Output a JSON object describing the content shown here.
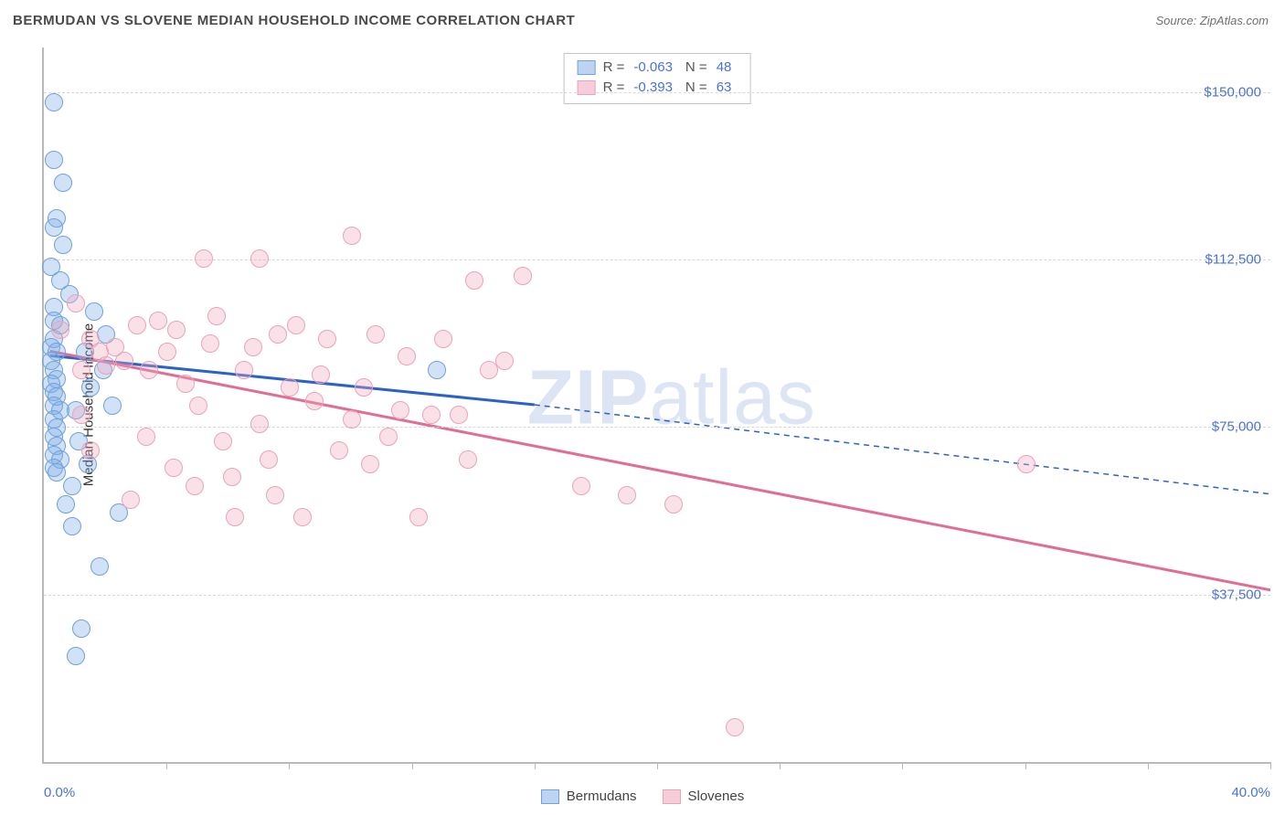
{
  "title": "BERMUDAN VS SLOVENE MEDIAN HOUSEHOLD INCOME CORRELATION CHART",
  "source": "Source: ZipAtlas.com",
  "watermark_part1": "ZIP",
  "watermark_part2": "atlas",
  "y_axis_title": "Median Household Income",
  "x_axis": {
    "min": 0.0,
    "max": 40.0,
    "left_label": "0.0%",
    "right_label": "40.0%",
    "tick_positions_pct": [
      10,
      20,
      30,
      40,
      50,
      60,
      70,
      80,
      90,
      100
    ]
  },
  "y_axis": {
    "min": 0,
    "max": 160000,
    "gridlines": [
      {
        "value": 37500,
        "label": "$37,500"
      },
      {
        "value": 75000,
        "label": "$75,000"
      },
      {
        "value": 112500,
        "label": "$112,500"
      },
      {
        "value": 150000,
        "label": "$150,000"
      }
    ]
  },
  "series": [
    {
      "name": "Bermudans",
      "marker_fill": "rgba(127,173,229,0.35)",
      "marker_stroke": "#6fa2db",
      "line_color": "#2a62c8",
      "swatch_fill": "#bcd4f0",
      "swatch_border": "#6fa2db",
      "marker_radius": 9,
      "trend": {
        "x1_pct": 0.2,
        "y1": 91000,
        "x2_pct": 16.0,
        "y2": 80000,
        "dash_x2_pct": 40.0,
        "dash_y2": 60000
      },
      "stats": {
        "R": "-0.063",
        "N": "48"
      },
      "data": [
        {
          "x": 0.3,
          "y": 148000
        },
        {
          "x": 0.3,
          "y": 135000
        },
        {
          "x": 0.4,
          "y": 122000
        },
        {
          "x": 0.3,
          "y": 120000
        },
        {
          "x": 0.6,
          "y": 116000
        },
        {
          "x": 0.2,
          "y": 111000
        },
        {
          "x": 0.5,
          "y": 108000
        },
        {
          "x": 0.3,
          "y": 102000
        },
        {
          "x": 0.3,
          "y": 99000
        },
        {
          "x": 0.5,
          "y": 98000
        },
        {
          "x": 0.3,
          "y": 95000
        },
        {
          "x": 0.2,
          "y": 93000
        },
        {
          "x": 0.4,
          "y": 92000
        },
        {
          "x": 0.2,
          "y": 90000
        },
        {
          "x": 0.3,
          "y": 88000
        },
        {
          "x": 0.4,
          "y": 86000
        },
        {
          "x": 0.2,
          "y": 85000
        },
        {
          "x": 0.3,
          "y": 83000
        },
        {
          "x": 0.4,
          "y": 82000
        },
        {
          "x": 0.3,
          "y": 80000
        },
        {
          "x": 0.5,
          "y": 79000
        },
        {
          "x": 0.3,
          "y": 77000
        },
        {
          "x": 0.4,
          "y": 75000
        },
        {
          "x": 0.3,
          "y": 73000
        },
        {
          "x": 0.4,
          "y": 71000
        },
        {
          "x": 0.3,
          "y": 69000
        },
        {
          "x": 0.5,
          "y": 68000
        },
        {
          "x": 0.3,
          "y": 66000
        },
        {
          "x": 0.4,
          "y": 65000
        },
        {
          "x": 1.6,
          "y": 101000
        },
        {
          "x": 1.3,
          "y": 92000
        },
        {
          "x": 1.9,
          "y": 88000
        },
        {
          "x": 1.0,
          "y": 79000
        },
        {
          "x": 1.1,
          "y": 72000
        },
        {
          "x": 1.4,
          "y": 67000
        },
        {
          "x": 2.4,
          "y": 56000
        },
        {
          "x": 1.8,
          "y": 44000
        },
        {
          "x": 1.2,
          "y": 30000
        },
        {
          "x": 1.0,
          "y": 24000
        },
        {
          "x": 2.0,
          "y": 96000
        },
        {
          "x": 0.9,
          "y": 62000
        },
        {
          "x": 0.7,
          "y": 58000
        },
        {
          "x": 12.8,
          "y": 88000
        },
        {
          "x": 0.8,
          "y": 105000
        },
        {
          "x": 0.6,
          "y": 130000
        },
        {
          "x": 1.5,
          "y": 84000
        },
        {
          "x": 0.9,
          "y": 53000
        },
        {
          "x": 2.2,
          "y": 80000
        }
      ]
    },
    {
      "name": "Slovenes",
      "marker_fill": "rgba(241,168,190,0.35)",
      "marker_stroke": "#eaa3ba",
      "line_color": "#e06e93",
      "swatch_fill": "#f6cdd9",
      "swatch_border": "#eaa3ba",
      "marker_radius": 9,
      "trend": {
        "x1_pct": 0.2,
        "y1": 92000,
        "x2_pct": 40.0,
        "y2": 38500
      },
      "stats": {
        "R": "-0.393",
        "N": "63"
      },
      "data": [
        {
          "x": 0.5,
          "y": 97000
        },
        {
          "x": 5.2,
          "y": 113000
        },
        {
          "x": 7.0,
          "y": 113000
        },
        {
          "x": 1.5,
          "y": 95000
        },
        {
          "x": 1.8,
          "y": 92000
        },
        {
          "x": 10.0,
          "y": 118000
        },
        {
          "x": 2.0,
          "y": 89000
        },
        {
          "x": 2.3,
          "y": 93000
        },
        {
          "x": 2.6,
          "y": 90000
        },
        {
          "x": 3.0,
          "y": 98000
        },
        {
          "x": 3.4,
          "y": 88000
        },
        {
          "x": 3.7,
          "y": 99000
        },
        {
          "x": 4.0,
          "y": 92000
        },
        {
          "x": 4.3,
          "y": 97000
        },
        {
          "x": 4.6,
          "y": 85000
        },
        {
          "x": 5.0,
          "y": 80000
        },
        {
          "x": 5.4,
          "y": 94000
        },
        {
          "x": 5.8,
          "y": 72000
        },
        {
          "x": 6.2,
          "y": 55000
        },
        {
          "x": 6.5,
          "y": 88000
        },
        {
          "x": 7.0,
          "y": 76000
        },
        {
          "x": 7.3,
          "y": 68000
        },
        {
          "x": 7.6,
          "y": 96000
        },
        {
          "x": 8.0,
          "y": 84000
        },
        {
          "x": 8.4,
          "y": 55000
        },
        {
          "x": 8.8,
          "y": 81000
        },
        {
          "x": 9.2,
          "y": 95000
        },
        {
          "x": 9.6,
          "y": 70000
        },
        {
          "x": 10.0,
          "y": 77000
        },
        {
          "x": 10.4,
          "y": 84000
        },
        {
          "x": 10.8,
          "y": 96000
        },
        {
          "x": 11.2,
          "y": 73000
        },
        {
          "x": 11.6,
          "y": 79000
        },
        {
          "x": 12.2,
          "y": 55000
        },
        {
          "x": 12.6,
          "y": 78000
        },
        {
          "x": 13.0,
          "y": 95000
        },
        {
          "x": 13.5,
          "y": 78000
        },
        {
          "x": 14.0,
          "y": 108000
        },
        {
          "x": 14.5,
          "y": 88000
        },
        {
          "x": 15.0,
          "y": 90000
        },
        {
          "x": 15.6,
          "y": 109000
        },
        {
          "x": 17.5,
          "y": 62000
        },
        {
          "x": 19.0,
          "y": 60000
        },
        {
          "x": 20.5,
          "y": 58000
        },
        {
          "x": 22.5,
          "y": 8000
        },
        {
          "x": 32.0,
          "y": 67000
        },
        {
          "x": 1.0,
          "y": 103000
        },
        {
          "x": 1.2,
          "y": 88000
        },
        {
          "x": 1.2,
          "y": 78000
        },
        {
          "x": 1.5,
          "y": 70000
        },
        {
          "x": 2.8,
          "y": 59000
        },
        {
          "x": 3.3,
          "y": 73000
        },
        {
          "x": 4.2,
          "y": 66000
        },
        {
          "x": 4.9,
          "y": 62000
        },
        {
          "x": 5.6,
          "y": 100000
        },
        {
          "x": 6.1,
          "y": 64000
        },
        {
          "x": 6.8,
          "y": 93000
        },
        {
          "x": 7.5,
          "y": 60000
        },
        {
          "x": 8.2,
          "y": 98000
        },
        {
          "x": 9.0,
          "y": 87000
        },
        {
          "x": 10.6,
          "y": 67000
        },
        {
          "x": 11.8,
          "y": 91000
        },
        {
          "x": 13.8,
          "y": 68000
        }
      ]
    }
  ],
  "bottom_legend": [
    "Bermudans",
    "Slovenes"
  ]
}
